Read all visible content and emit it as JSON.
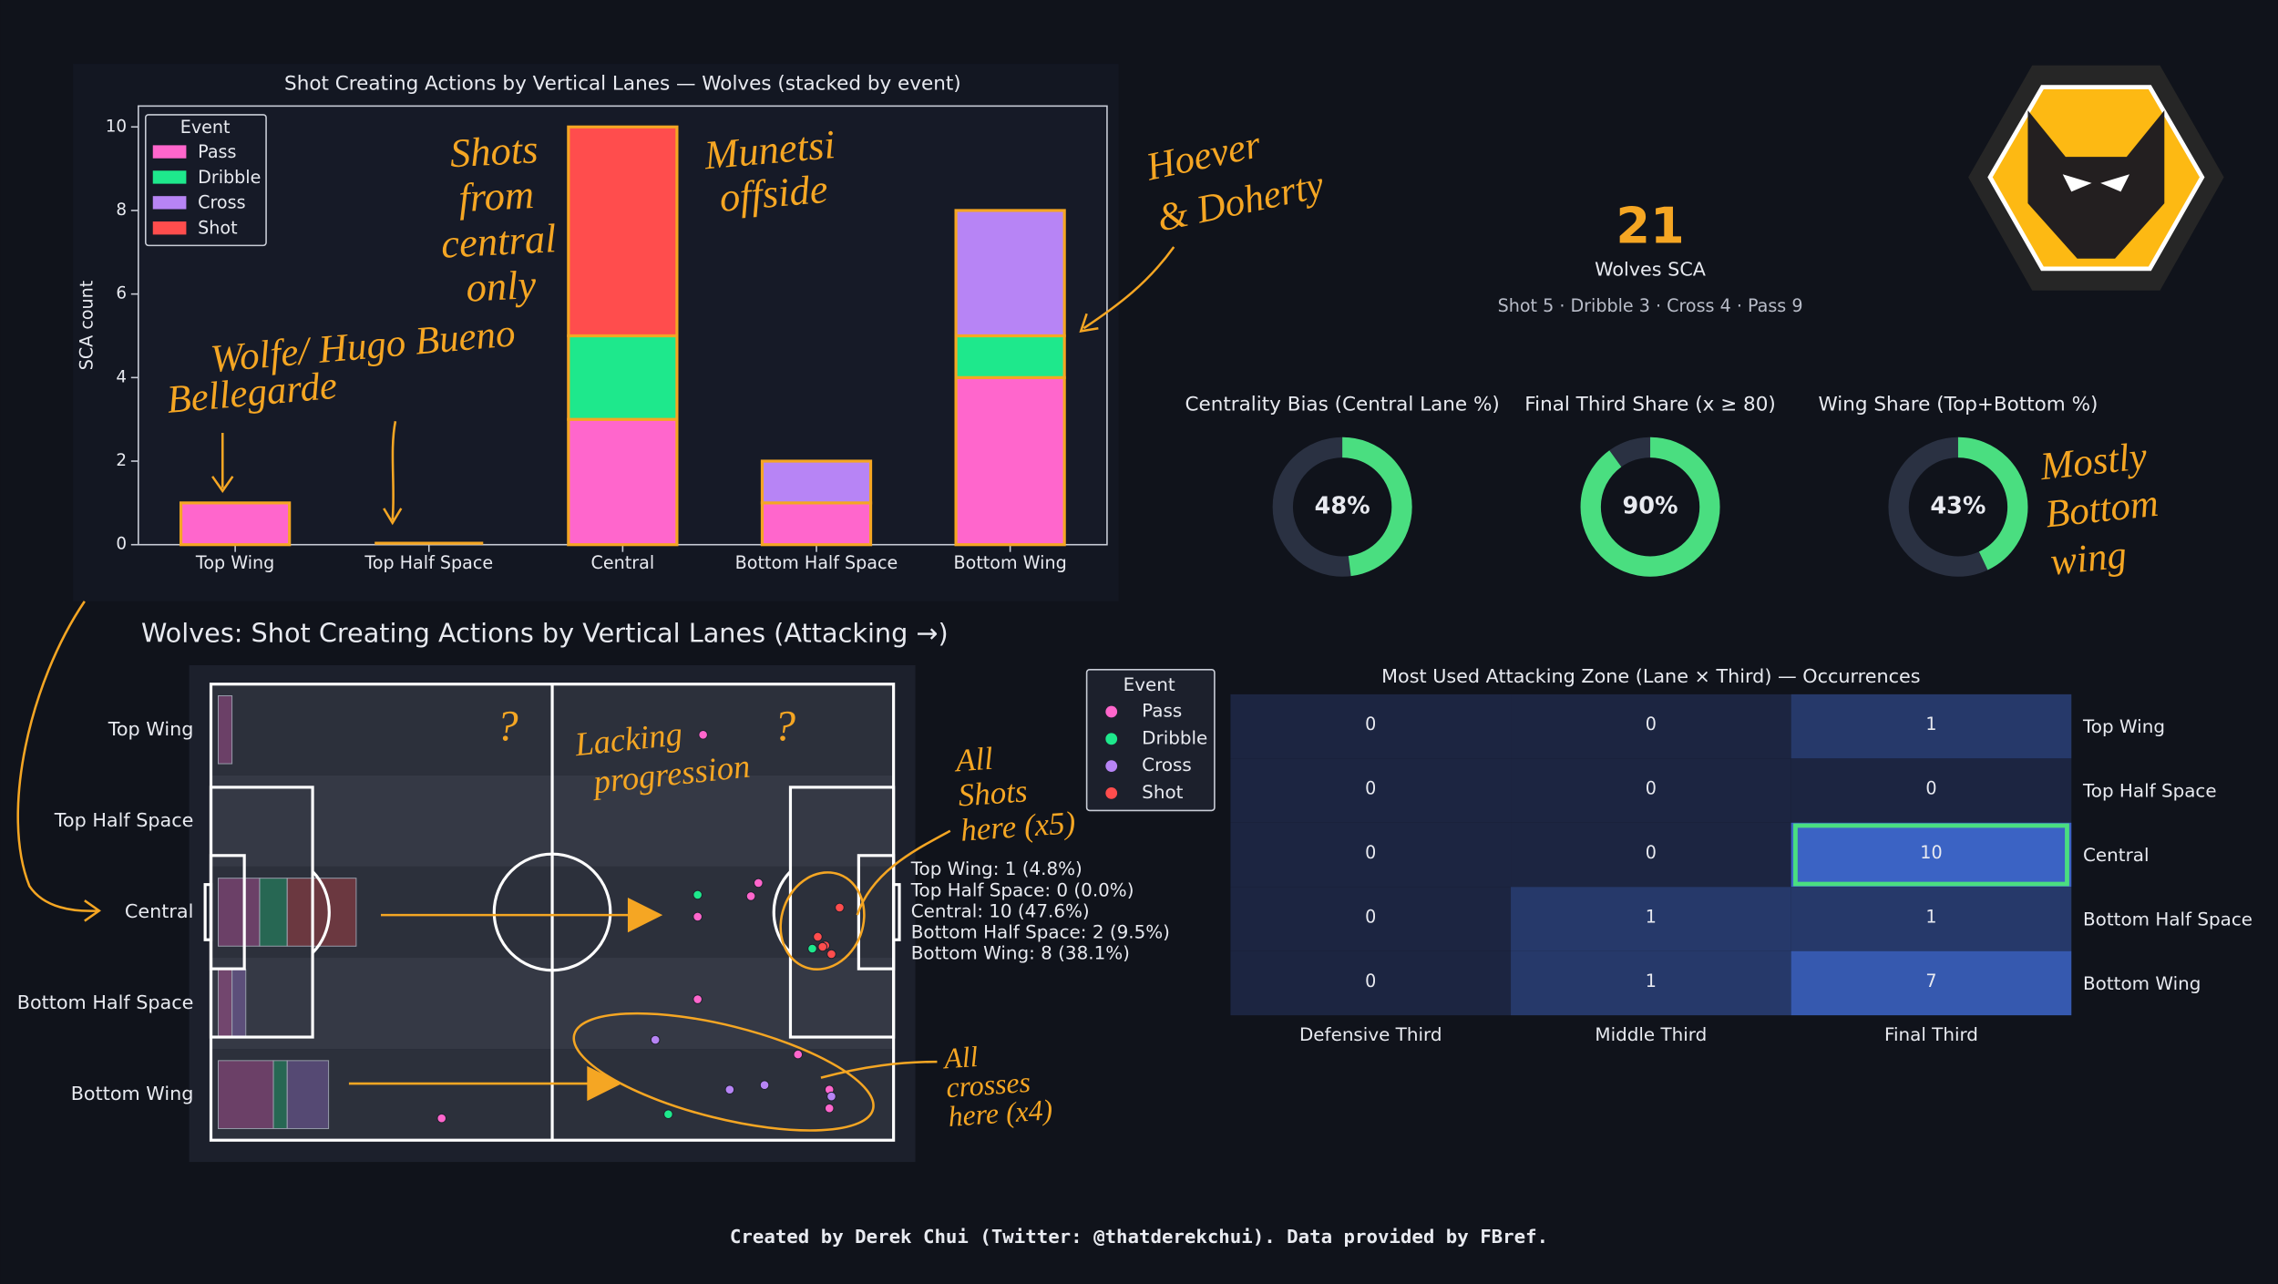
{
  "chart_data": [
    {
      "type": "bar",
      "stacked": true,
      "title": "Shot Creating Actions by Vertical Lanes — Wolves (stacked by event)",
      "y_label": "SCA count",
      "legend_title": "Event",
      "edge_color": "#f5a623",
      "categories": [
        "Top Wing",
        "Top Half Space",
        "Central",
        "Bottom Half Space",
        "Bottom Wing"
      ],
      "series": [
        {
          "name": "Pass",
          "color": "#ff66cc",
          "values": [
            1,
            0,
            3,
            1,
            4
          ]
        },
        {
          "name": "Dribble",
          "color": "#1ee88c",
          "values": [
            0,
            0,
            2,
            0,
            1
          ]
        },
        {
          "name": "Cross",
          "color": "#b784f5",
          "values": [
            0,
            0,
            0,
            1,
            3
          ]
        },
        {
          "name": "Shot",
          "color": "#ff4d4d",
          "values": [
            0,
            0,
            5,
            0,
            0
          ]
        }
      ],
      "ylim": [
        0,
        10.5
      ],
      "yticks": [
        0,
        2,
        4,
        6,
        8,
        10
      ]
    },
    {
      "type": "donut",
      "title": "Centrality Bias (Central Lane %)",
      "value": 48,
      "value_label": "48%",
      "color": "#4ade80",
      "track_color": "#2a3142"
    },
    {
      "type": "donut",
      "title": "Final Third Share (x ≥ 80)",
      "value": 90,
      "value_label": "90%",
      "color": "#4ade80",
      "track_color": "#2a3142"
    },
    {
      "type": "donut",
      "title": "Wing Share (Top+Bottom %)",
      "value": 43,
      "value_label": "43%",
      "color": "#4ade80",
      "track_color": "#2a3142"
    },
    {
      "type": "scatter",
      "title": "Wolves: Shot Creating Actions by Vertical Lanes (Attacking →)",
      "legend_title": "Event",
      "xlim": [
        0,
        100
      ],
      "ylim": [
        100,
        0
      ],
      "series": [
        {
          "name": "Pass",
          "color": "#ff66cc",
          "x": [
            72.1,
            80.2,
            79.1,
            71.3,
            71.3,
            86.0,
            90.6,
            90.6,
            33.8
          ],
          "y": [
            11.1,
            43.6,
            46.5,
            51.0,
            69.1,
            81.2,
            88.9,
            93.0,
            95.2
          ]
        },
        {
          "name": "Dribble",
          "color": "#1ee88c",
          "x": [
            71.3,
            88.1,
            67.0
          ],
          "y": [
            46.2,
            58.0,
            94.3
          ]
        },
        {
          "name": "Cross",
          "color": "#b784f5",
          "x": [
            65.1,
            76.0,
            81.1,
            90.9
          ],
          "y": [
            78.0,
            88.9,
            87.9,
            90.4
          ]
        },
        {
          "name": "Shot",
          "color": "#ff4d4d",
          "x": [
            92.1,
            88.9,
            90.0,
            90.9,
            89.6
          ],
          "y": [
            49.0,
            55.4,
            57.3,
            59.2,
            57.6
          ]
        }
      ],
      "lane_stats": [
        "Top Wing: 1 (4.8%)",
        "Top Half Space: 0 (0.0%)",
        "Central: 10 (47.6%)",
        "Bottom Half Space: 2 (9.5%)",
        "Bottom Wing: 8 (38.1%)"
      ]
    },
    {
      "type": "heatmap",
      "title": "Most Used Attacking Zone (Lane × Third) — Occurrences",
      "x_categories": [
        "Defensive Third",
        "Middle Third",
        "Final Third"
      ],
      "values": [
        [
          0,
          0,
          1
        ],
        [
          0,
          0,
          0
        ],
        [
          0,
          0,
          10
        ],
        [
          0,
          1,
          1
        ],
        [
          0,
          1,
          7
        ]
      ],
      "highlight_color": "#4ade80"
    }
  ],
  "kpi": {
    "value": 21,
    "label": "Wolves SCA",
    "breakdown": "Shot 5 · Dribble 3 · Cross 4 · Pass 9"
  },
  "annotations": [
    [
      "Shots",
      "from",
      "central",
      "only"
    ],
    [
      "Munetsi",
      "offside"
    ],
    [
      "Hoever",
      "& Doherty"
    ],
    [
      "Wolfe/ Hugo Bueno"
    ],
    [
      "Bellegarde"
    ],
    [
      "Mostly",
      "Bottom",
      "wing"
    ],
    [
      "?"
    ],
    [
      "?"
    ],
    [
      "Lacking",
      "progression"
    ],
    [
      "All",
      "Shots",
      "here (x5)"
    ],
    [
      "All",
      "crosses",
      "here (x4)"
    ]
  ],
  "footer": "Created by Derek Chui (Twitter: @thatderekchui). Data provided by FBref."
}
